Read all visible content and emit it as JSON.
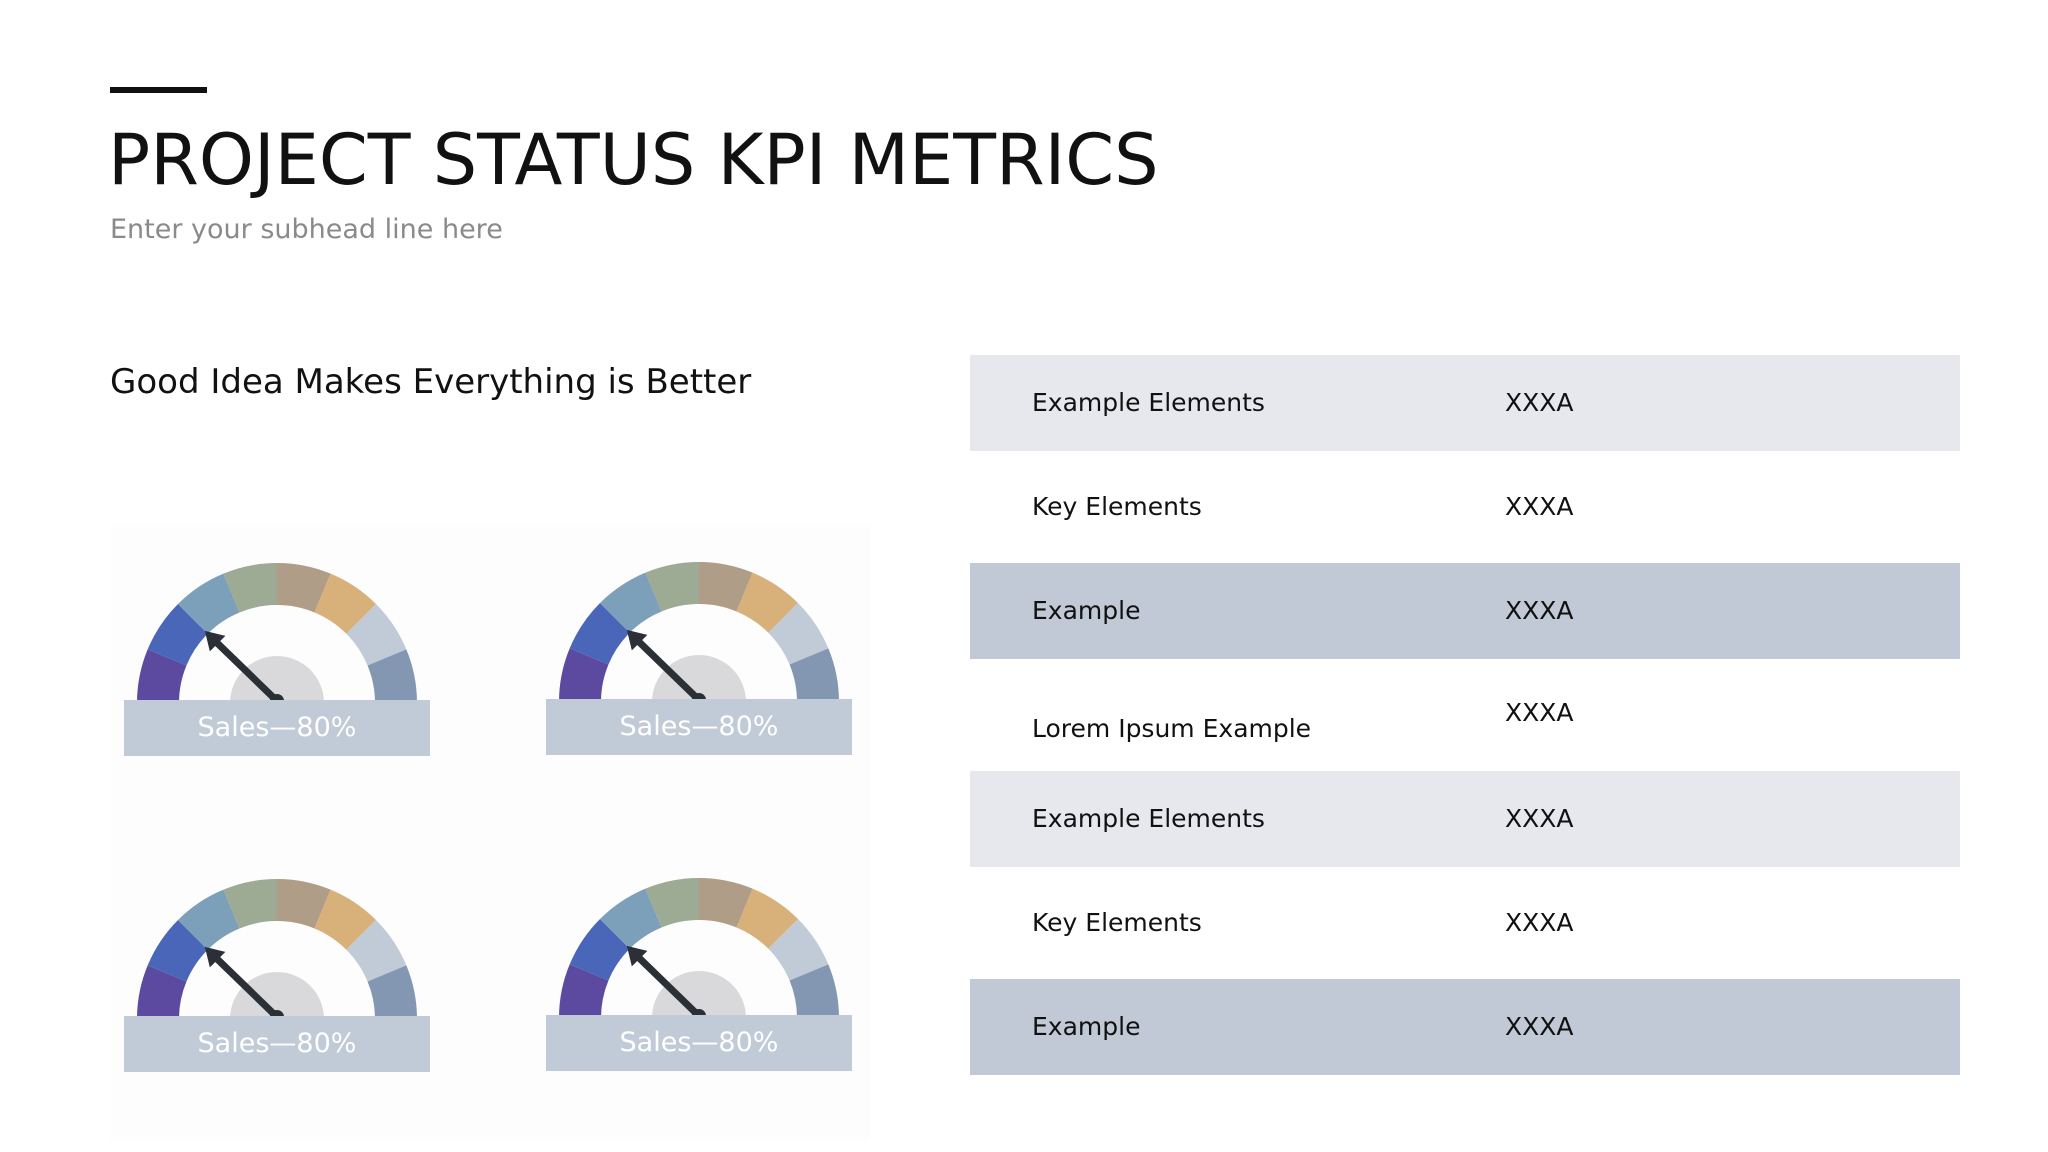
{
  "header": {
    "title": "PROJECT STATUS KPI METRICS",
    "subhead": "Enter your subhead line here"
  },
  "section": {
    "heading": "Good Idea Makes Everything is Better"
  },
  "gauges": [
    {
      "label": "Sales—80%",
      "value_percent": 80
    },
    {
      "label": "Sales—80%",
      "value_percent": 80
    },
    {
      "label": "Sales—80%",
      "value_percent": 80
    },
    {
      "label": "Sales—80%",
      "value_percent": 80
    }
  ],
  "gauge_colors": [
    "#5b4aa0",
    "#4a66b8",
    "#7c9fba",
    "#9daa94",
    "#b09d88",
    "#d8b07a",
    "#c1cbd8",
    "#8397b2"
  ],
  "table": {
    "rows": [
      {
        "name": "Example Elements",
        "value": "XXXA"
      },
      {
        "name": "Key Elements",
        "value": "XXXA"
      },
      {
        "name": "Example",
        "value": "XXXA"
      },
      {
        "name": "Lorem Ipsum Example",
        "value": "XXXA"
      },
      {
        "name": "Example Elements",
        "value": "XXXA"
      },
      {
        "name": "Key Elements",
        "value": "XXXA"
      },
      {
        "name": "Example",
        "value": "XXXA"
      }
    ]
  },
  "colors": {
    "row_light": "#e6e8ed",
    "row_mid": "#c1c8d6",
    "label_bar": "#c1cbd8",
    "needle": "#2b2f36"
  }
}
